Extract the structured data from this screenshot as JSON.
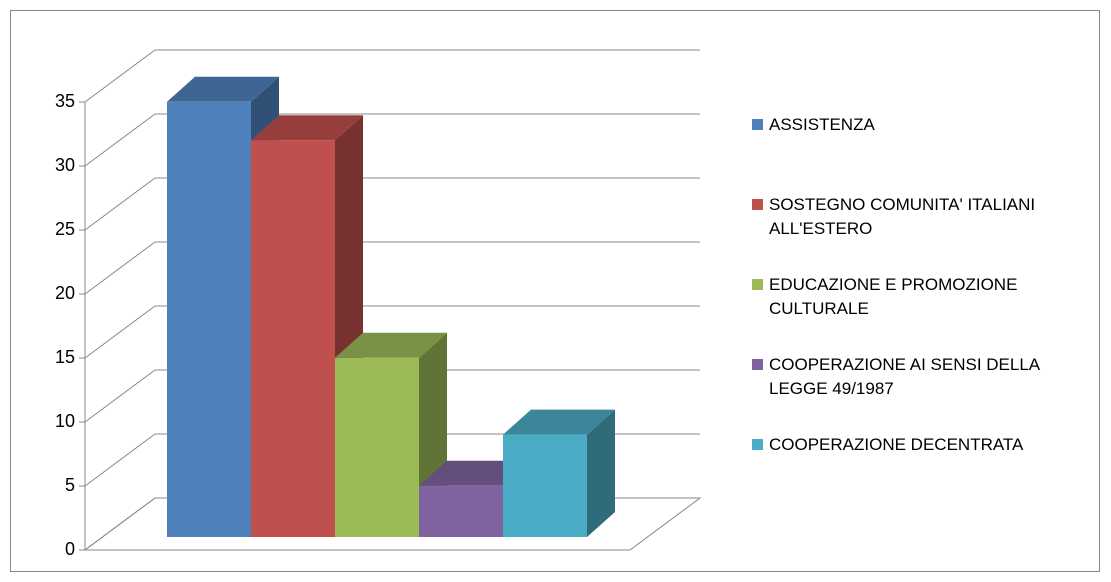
{
  "chart_data": {
    "type": "bar3d",
    "series": [
      {
        "name": "ASSISTENZA",
        "color": "#4f81bd",
        "values": [
          34
        ]
      },
      {
        "name": "SOSTEGNO COMUNITA' ITALIANI ALL'ESTERO",
        "color": "#c0504d",
        "values": [
          31
        ]
      },
      {
        "name": "EDUCAZIONE E PROMOZIONE CULTURALE",
        "color": "#9bbb59",
        "values": [
          14
        ]
      },
      {
        "name": "COOPERAZIONE AI SENSI DELLA LEGGE 49/1987",
        "color": "#8064a2",
        "values": [
          4
        ]
      },
      {
        "name": "COOPERAZIONE DECENTRATA",
        "color": "#4bacc6",
        "values": [
          8
        ]
      }
    ],
    "ylim": [
      0,
      35
    ],
    "yticks": [
      0,
      5,
      10,
      15,
      20,
      25,
      30,
      35
    ],
    "grid": true,
    "legend": "right"
  }
}
